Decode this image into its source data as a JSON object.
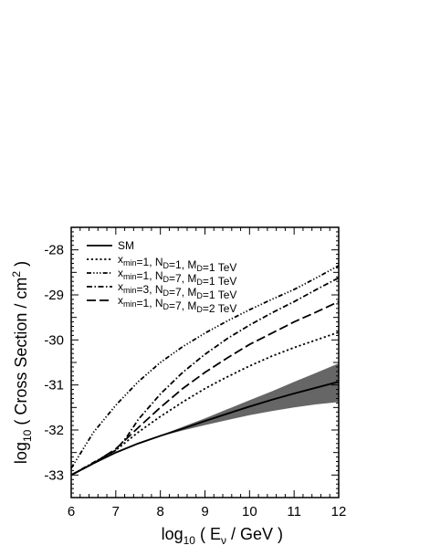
{
  "chart_data": {
    "type": "line",
    "xlabel": {
      "prefix": "log",
      "sub": "10",
      "body_pre": " ( E",
      "body_sub": "ν",
      "body_post": " / GeV )"
    },
    "ylabel": {
      "prefix": "log",
      "sub": "10",
      "body": " ( Cross Section / cm",
      "sup": "2",
      "end": " )"
    },
    "xlim": [
      6,
      12
    ],
    "ylim": [
      -33.5,
      -27.5
    ],
    "x_ticks": [
      "6",
      "7",
      "8",
      "9",
      "10",
      "11",
      "12"
    ],
    "y_ticks": [
      "-33",
      "-32",
      "-31",
      "-30",
      "-29",
      "-28"
    ],
    "legend_position": "top-left",
    "band_color": "#666666",
    "series": [
      {
        "name": "SM",
        "legend": {
          "parts": [
            {
              "t": "SM",
              "s": null
            }
          ]
        },
        "dash": "solid",
        "x": [
          6.0,
          6.5,
          7.0,
          7.5,
          8.0,
          8.5,
          9.0,
          9.5,
          10.0,
          10.5,
          11.0,
          11.5,
          12.0
        ],
        "y": [
          -33.0,
          -32.74,
          -32.5,
          -32.3,
          -32.13,
          -31.97,
          -31.8,
          -31.64,
          -31.48,
          -31.33,
          -31.19,
          -31.06,
          -30.93
        ],
        "band_upper": [
          -33.0,
          -32.74,
          -32.5,
          -32.3,
          -32.12,
          -31.93,
          -31.74,
          -31.54,
          -31.34,
          -31.14,
          -30.93,
          -30.73,
          -30.52
        ],
        "band_lower": [
          -33.0,
          -32.74,
          -32.5,
          -32.3,
          -32.14,
          -32.01,
          -31.89,
          -31.78,
          -31.67,
          -31.58,
          -31.5,
          -31.43,
          -31.38
        ]
      },
      {
        "name": "xmin=1, ND=1, MD=1 TeV",
        "legend": {
          "parts": [
            {
              "t": "x",
              "s": "min"
            },
            {
              "t": "=1, N",
              "s": "D"
            },
            {
              "t": "=1, M",
              "s": "D"
            },
            {
              "t": "=1 TeV",
              "s": null
            }
          ]
        },
        "dash": "dotted",
        "x": [
          6.0,
          6.5,
          7.0,
          7.5,
          8.0,
          8.5,
          9.0,
          9.5,
          10.0,
          10.5,
          11.0,
          11.5,
          12.0
        ],
        "y": [
          -33.0,
          -32.74,
          -32.45,
          -32.05,
          -31.7,
          -31.38,
          -31.08,
          -30.82,
          -30.58,
          -30.36,
          -30.17,
          -30.0,
          -29.83
        ]
      },
      {
        "name": "xmin=1, ND=7, MD=1 TeV",
        "legend": {
          "parts": [
            {
              "t": "x",
              "s": "min"
            },
            {
              "t": "=1, N",
              "s": "D"
            },
            {
              "t": "=7, M",
              "s": "D"
            },
            {
              "t": "=1 TeV",
              "s": null
            }
          ]
        },
        "dash": "dash-triple-dot",
        "x": [
          6.0,
          6.5,
          7.0,
          7.5,
          8.0,
          8.5,
          9.0,
          9.5,
          10.0,
          10.5,
          11.0,
          11.5,
          12.0
        ],
        "y": [
          -32.85,
          -32.05,
          -31.45,
          -30.93,
          -30.5,
          -30.15,
          -29.85,
          -29.58,
          -29.33,
          -29.1,
          -28.88,
          -28.62,
          -28.35
        ]
      },
      {
        "name": "xmin=3, ND=7, MD=1 TeV",
        "legend": {
          "parts": [
            {
              "t": "x",
              "s": "min"
            },
            {
              "t": "=3, N",
              "s": "D"
            },
            {
              "t": "=7, M",
              "s": "D"
            },
            {
              "t": "=1 TeV",
              "s": null
            }
          ]
        },
        "dash": "dash-dot",
        "x": [
          6.0,
          6.5,
          7.0,
          7.25,
          7.5,
          8.0,
          8.5,
          9.0,
          9.5,
          10.0,
          10.5,
          11.0,
          11.5,
          12.0
        ],
        "y": [
          -33.0,
          -32.72,
          -32.45,
          -32.15,
          -31.77,
          -31.2,
          -30.72,
          -30.32,
          -29.97,
          -29.67,
          -29.4,
          -29.15,
          -28.88,
          -28.62
        ]
      },
      {
        "name": "xmin=1, ND=7, MD=2 TeV",
        "legend": {
          "parts": [
            {
              "t": "x",
              "s": "min"
            },
            {
              "t": "=1, N",
              "s": "D"
            },
            {
              "t": "=7, M",
              "s": "D"
            },
            {
              "t": "=2 TeV",
              "s": null
            }
          ]
        },
        "dash": "long-dash",
        "x": [
          6.0,
          6.5,
          7.0,
          7.5,
          8.0,
          8.5,
          9.0,
          9.5,
          10.0,
          10.5,
          11.0,
          11.5,
          12.0
        ],
        "y": [
          -33.0,
          -32.74,
          -32.42,
          -31.95,
          -31.5,
          -31.08,
          -30.72,
          -30.4,
          -30.1,
          -29.85,
          -29.6,
          -29.38,
          -29.15
        ]
      }
    ]
  }
}
